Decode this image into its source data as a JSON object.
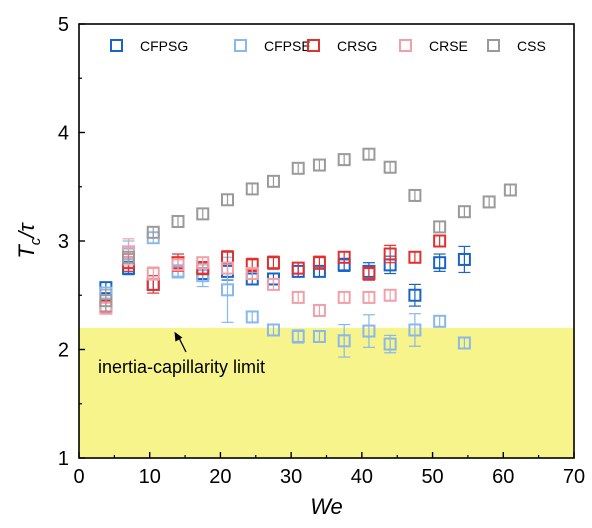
{
  "chart_data": {
    "type": "scatter",
    "xlabel": "We",
    "ylabel_main": "T",
    "ylabel_sub": "c",
    "ylabel_rest": "/τ",
    "xlim": [
      0,
      70
    ],
    "ylim": [
      1,
      5
    ],
    "xticks": [
      "0",
      "10",
      "20",
      "30",
      "40",
      "50",
      "60",
      "70"
    ],
    "yticks": [
      "1",
      "2",
      "3",
      "4",
      "5"
    ],
    "grid": false,
    "legend_placement": "top",
    "marker": "open-square-with-errorbars",
    "shaded_region": {
      "y_from": 1,
      "y_to": 2.2,
      "color": "#f8f48c"
    },
    "annotation": {
      "text": "inertia-capillarity limit",
      "arrow_to": [
        13.5,
        2.2
      ]
    },
    "series": [
      {
        "name": "CFPSG",
        "color": "#1a64c8",
        "x": [
          3.8,
          7,
          10.5,
          14,
          17.5,
          21,
          24.5,
          27.5,
          31,
          34,
          37.5,
          41,
          44,
          47.5,
          51,
          54.5
        ],
        "y": [
          2.57,
          2.75,
          2.6,
          2.72,
          2.7,
          2.72,
          2.65,
          2.65,
          2.72,
          2.72,
          2.78,
          2.72,
          2.78,
          2.5,
          2.8,
          2.83
        ],
        "err": [
          0.05,
          0.06,
          0.05,
          0.05,
          0.05,
          0.08,
          0.05,
          0.05,
          0.05,
          0.05,
          0.06,
          0.08,
          0.08,
          0.1,
          0.08,
          0.12
        ]
      },
      {
        "name": "CFPSE",
        "color": "#88b8ec",
        "x": [
          3.8,
          7,
          10.5,
          14,
          17.5,
          21,
          24.5,
          27.5,
          31,
          34,
          37.5,
          41,
          44,
          47.5,
          51,
          54.5
        ],
        "y": [
          2.52,
          2.88,
          3.03,
          2.72,
          2.68,
          2.55,
          2.3,
          2.18,
          2.12,
          2.12,
          2.08,
          2.17,
          2.05,
          2.18,
          2.26,
          2.06
        ],
        "err": [
          0.05,
          0.12,
          0.05,
          0.06,
          0.1,
          0.3,
          0.05,
          0.05,
          0.06,
          0.05,
          0.15,
          0.15,
          0.08,
          0.15,
          0.05,
          0.05
        ]
      },
      {
        "name": "CRSG",
        "color": "#e03030",
        "x": [
          3.8,
          7,
          10.5,
          14,
          17.5,
          21,
          24.5,
          27.5,
          31,
          34,
          37.5,
          41,
          44,
          47.5,
          51
        ],
        "y": [
          2.4,
          2.8,
          2.6,
          2.8,
          2.75,
          2.85,
          2.78,
          2.8,
          2.75,
          2.8,
          2.85,
          2.7,
          2.88,
          2.85,
          3.0
        ],
        "err": [
          0.05,
          0.08,
          0.08,
          0.08,
          0.06,
          0.06,
          0.06,
          0.06,
          0.05,
          0.06,
          0.05,
          0.06,
          0.08,
          0.05,
          0.05
        ]
      },
      {
        "name": "CRSE",
        "color": "#f2a0a8",
        "x": [
          3.8,
          7,
          10.5,
          14,
          17.5,
          21,
          24.5,
          27.5,
          31,
          34,
          37.5,
          41,
          44
        ],
        "y": [
          2.38,
          2.9,
          2.7,
          2.78,
          2.8,
          2.75,
          2.7,
          2.6,
          2.48,
          2.36,
          2.48,
          2.48,
          2.5
        ],
        "err": [
          0.05,
          0.12,
          0.06,
          0.05,
          0.05,
          0.05,
          0.05,
          0.05,
          0.05,
          0.05,
          0.05,
          0.05,
          0.05
        ]
      },
      {
        "name": "CSS",
        "color": "#9a9a9a",
        "x": [
          3.8,
          7,
          10.5,
          14,
          17.5,
          21,
          24.5,
          27.5,
          31,
          34,
          37.5,
          41,
          44,
          47.5,
          51,
          54.5,
          58,
          61
        ],
        "y": [
          2.45,
          2.85,
          3.08,
          3.18,
          3.25,
          3.38,
          3.48,
          3.55,
          3.67,
          3.7,
          3.75,
          3.8,
          3.68,
          3.42,
          3.13,
          3.27,
          3.36,
          3.47
        ],
        "err": [
          0.1,
          0.05,
          0.05,
          0.05,
          0.05,
          0.05,
          0.05,
          0.05,
          0.05,
          0.05,
          0.05,
          0.05,
          0.05,
          0.05,
          0.05,
          0.05,
          0.05,
          0.05
        ]
      }
    ]
  }
}
